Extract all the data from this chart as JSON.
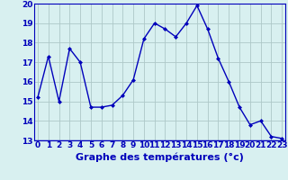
{
  "x": [
    0,
    1,
    2,
    3,
    4,
    5,
    6,
    7,
    8,
    9,
    10,
    11,
    12,
    13,
    14,
    15,
    16,
    17,
    18,
    19,
    20,
    21,
    22,
    23
  ],
  "y": [
    15.2,
    17.3,
    15.0,
    17.7,
    17.0,
    14.7,
    14.7,
    14.8,
    15.3,
    16.1,
    18.2,
    19.0,
    18.7,
    18.3,
    19.0,
    19.9,
    18.7,
    17.2,
    16.0,
    14.7,
    13.8,
    14.0,
    13.2,
    13.1
  ],
  "xlabel": "Graphe des températures (°c)",
  "ylim": [
    13,
    20
  ],
  "xlim": [
    -0.3,
    23.3
  ],
  "yticks": [
    13,
    14,
    15,
    16,
    17,
    18,
    19,
    20
  ],
  "xticks": [
    0,
    1,
    2,
    3,
    4,
    5,
    6,
    7,
    8,
    9,
    10,
    11,
    12,
    13,
    14,
    15,
    16,
    17,
    18,
    19,
    20,
    21,
    22,
    23
  ],
  "line_color": "#0000bb",
  "marker_color": "#0000bb",
  "bg_color": "#d8f0f0",
  "grid_color": "#aec8c8",
  "axis_label_color": "#0000bb",
  "tick_label_color": "#0000bb",
  "tick_fontsize": 6.5,
  "xlabel_fontsize": 8.0,
  "xlabel_bold": true
}
